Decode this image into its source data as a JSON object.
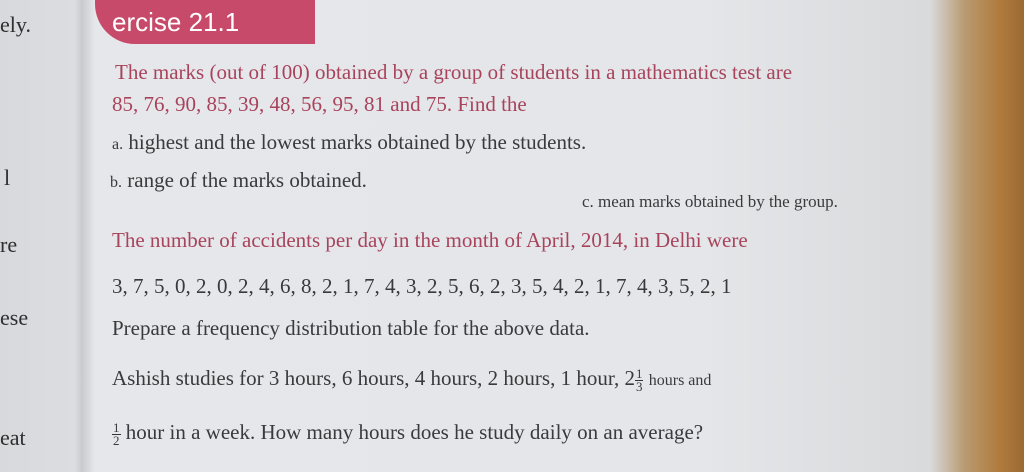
{
  "previous_page_fragments": [
    "ely.",
    "l",
    "re",
    "ese",
    "eat"
  ],
  "exercise_header": "ercise 21.1",
  "header_decoration": "////",
  "q1": {
    "line1": "The marks (out of 100) obtained by a group of students in a mathematics test are",
    "line2": "85, 76, 90, 85, 39, 48, 56, 95, 81 and 75. Find the",
    "part_a_label": "a.",
    "part_a": "highest and the lowest marks obtained by the students.",
    "part_b_label": "b.",
    "part_b": "range of the marks obtained.",
    "part_c_label": "c.",
    "part_c": "mean marks obtained by the group."
  },
  "q2": {
    "line1": "The number of accidents per day in the month of April, 2014, in Delhi were",
    "line2": "3, 7, 5, 0, 2, 0, 2, 4, 6, 8, 2, 1, 7, 4, 3, 2, 5, 6, 2, 3, 5, 4, 2, 1, 7, 4, 3, 5, 2, 1",
    "line3": "Prepare a frequency distribution table for the above data."
  },
  "q3": {
    "line1_text": "Ashish studies for 3 hours, 6 hours, 4 hours, 2 hours, 1 hour, 2",
    "frac1_num": "1",
    "frac1_den": "3",
    "line1_end": "hours and",
    "frac2_num": "1",
    "frac2_den": "2",
    "line2": "hour in a week. How many hours does he study daily on an average?"
  }
}
